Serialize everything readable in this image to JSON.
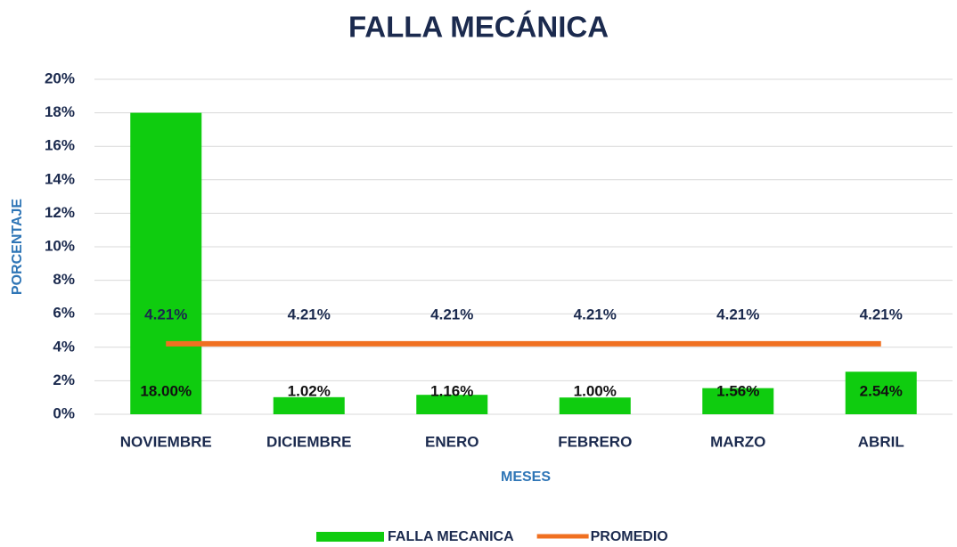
{
  "chart_data": {
    "type": "bar",
    "title": "FALLA MECÁNICA",
    "x_label": "MESES",
    "y_label": "PORCENTAJE",
    "categories": [
      "NOVIEMBRE",
      "DICIEMBRE",
      "ENERO",
      "FEBRERO",
      "MARZO",
      "ABRIL"
    ],
    "series": [
      {
        "name": "FALLA MECANICA",
        "type": "bar",
        "color": "#0fcc0f",
        "values": [
          18.0,
          1.02,
          1.16,
          1.0,
          1.56,
          2.54
        ],
        "value_labels": [
          "18.00%",
          "1.02%",
          "1.16%",
          "1.00%",
          "1.56%",
          "2.54%"
        ]
      },
      {
        "name": "PROMEDIO",
        "type": "line",
        "color": "#f07021",
        "values": [
          4.21,
          4.21,
          4.21,
          4.21,
          4.21,
          4.21
        ],
        "value_labels": [
          "4.21%",
          "4.21%",
          "4.21%",
          "4.21%",
          "4.21%",
          "4.21%"
        ]
      }
    ],
    "ylim": [
      0,
      20
    ],
    "yticks": [
      {
        "value": 0,
        "label": "0%"
      },
      {
        "value": 2,
        "label": "2%"
      },
      {
        "value": 4,
        "label": "4%"
      },
      {
        "value": 6,
        "label": "6%"
      },
      {
        "value": 8,
        "label": "8%"
      },
      {
        "value": 10,
        "label": "10%"
      },
      {
        "value": 12,
        "label": "12%"
      },
      {
        "value": 14,
        "label": "14%"
      },
      {
        "value": 16,
        "label": "16%"
      },
      {
        "value": 18,
        "label": "18%"
      },
      {
        "value": 20,
        "label": "20%"
      }
    ],
    "grid": true,
    "legend": "bottom"
  }
}
